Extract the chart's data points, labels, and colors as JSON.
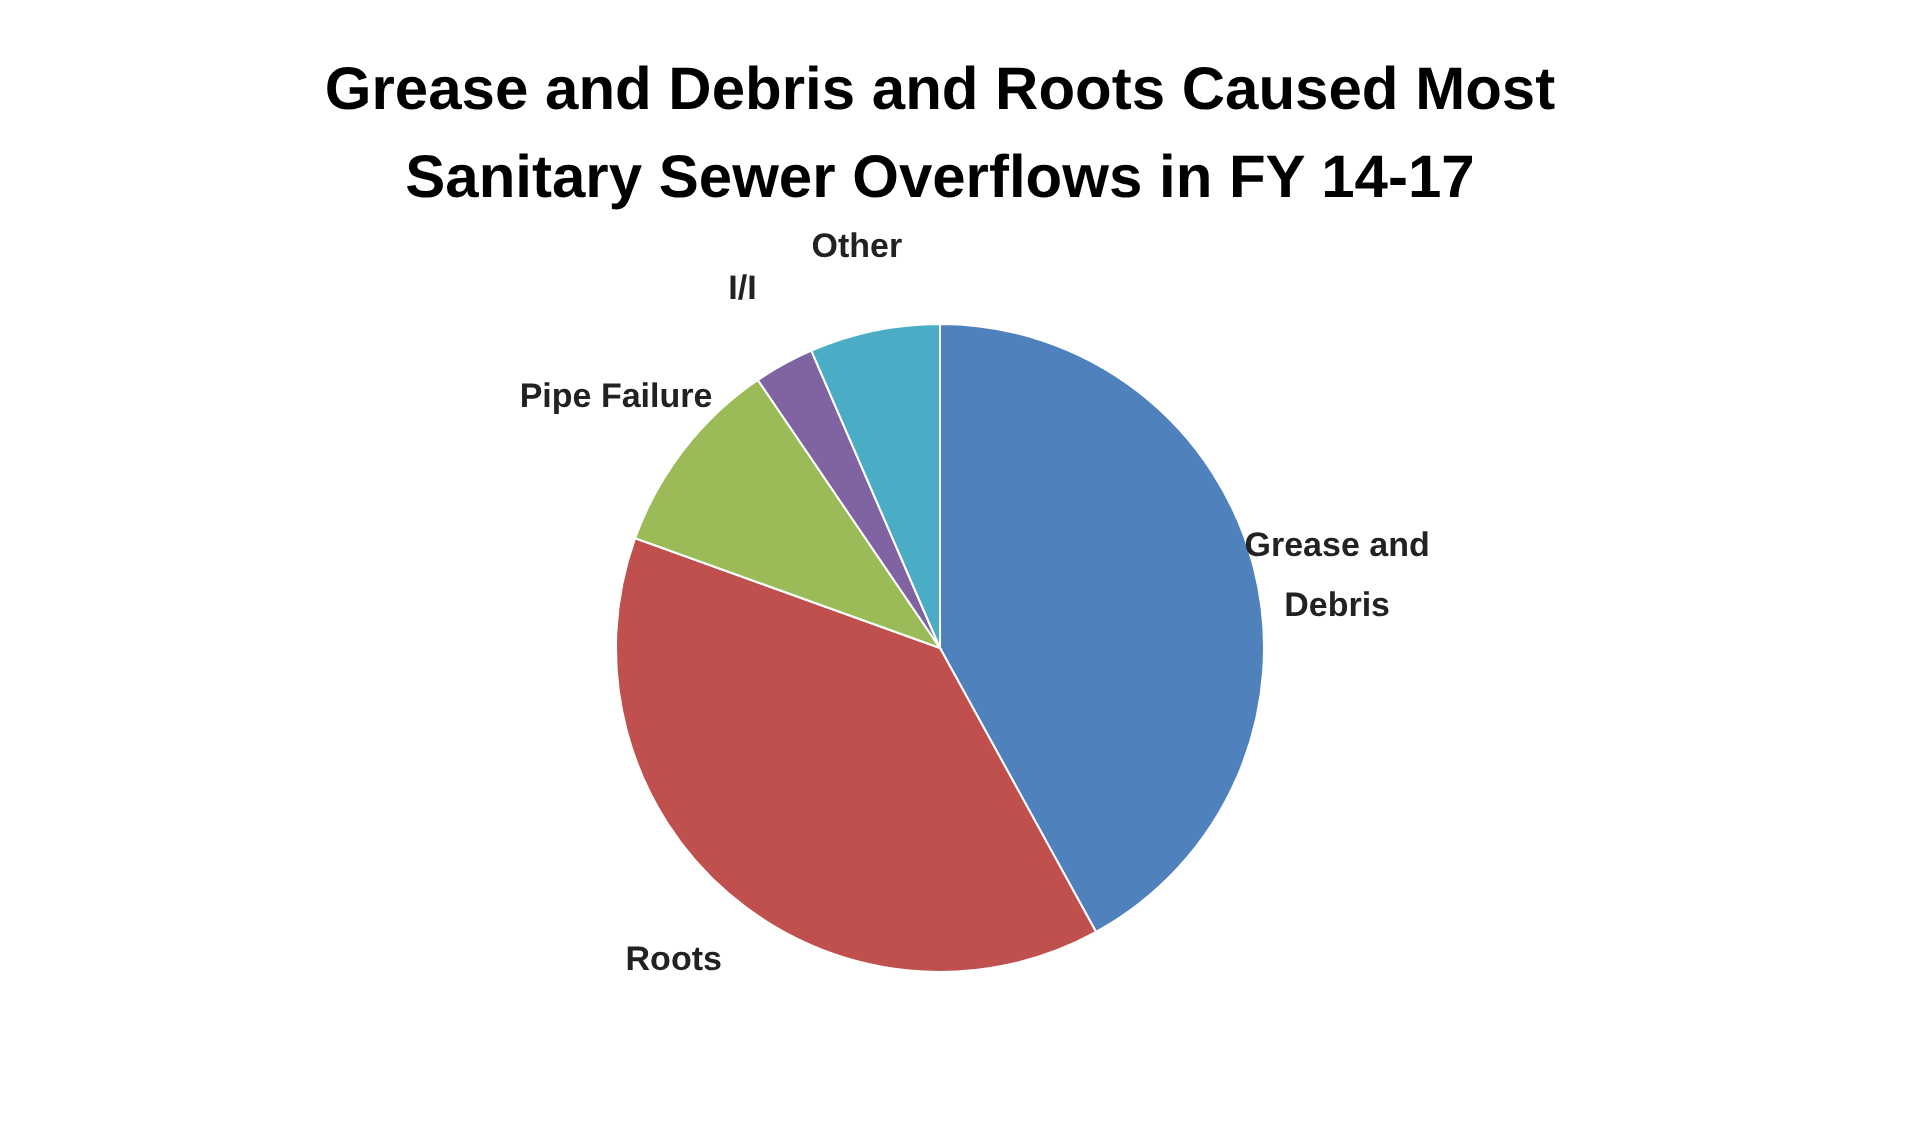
{
  "chart_data": {
    "type": "pie",
    "title": "Grease and Debris  and Roots Caused Most Sanitary Sewer Overflows in FY 14-17",
    "categories": [
      "Grease and Debris",
      "Roots",
      "Pipe Failure",
      "I/I",
      "Other"
    ],
    "values": [
      42,
      38.5,
      10,
      3,
      6.5
    ],
    "colors": [
      "#4f81bd",
      "#c0504d",
      "#9bbb59",
      "#8064a2",
      "#4bacc6"
    ],
    "legend": false
  }
}
